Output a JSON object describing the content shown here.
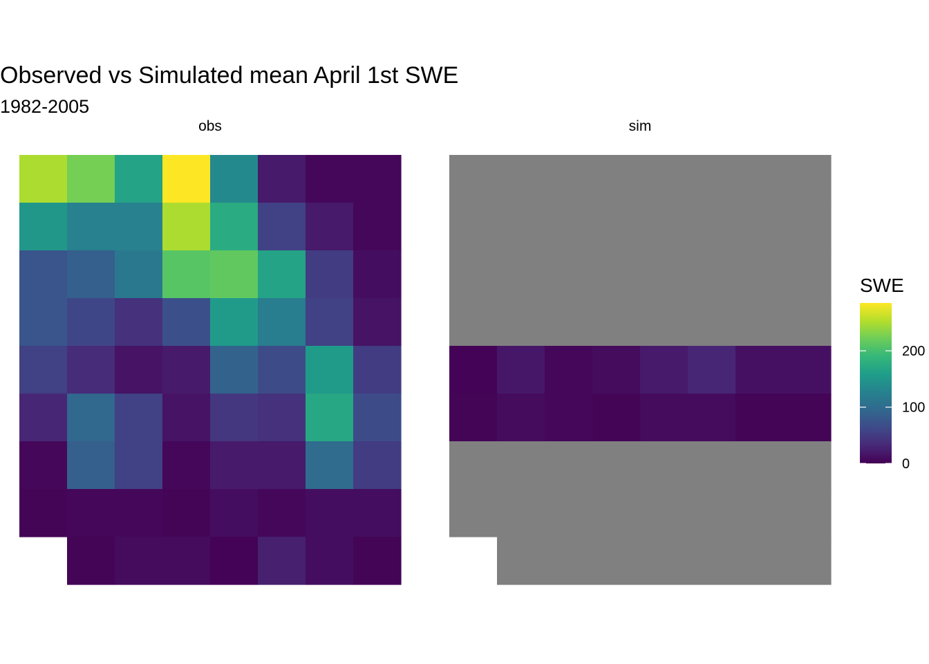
{
  "chart_data": {
    "type": "heatmap",
    "title": "Observed vs Simulated mean April 1st SWE",
    "subtitle": "1982-2005",
    "panels": [
      {
        "name": "obs",
        "rows": [
          [
            250,
            225,
            165,
            285,
            135,
            20,
            5,
            5
          ],
          [
            150,
            125,
            125,
            250,
            175,
            55,
            20,
            5
          ],
          [
            75,
            85,
            115,
            210,
            215,
            165,
            50,
            10
          ],
          [
            75,
            60,
            40,
            70,
            155,
            120,
            55,
            15
          ],
          [
            55,
            35,
            15,
            20,
            90,
            65,
            155,
            50
          ],
          [
            30,
            95,
            55,
            15,
            45,
            40,
            170,
            65
          ],
          [
            5,
            85,
            55,
            5,
            20,
            20,
            100,
            50
          ],
          [
            3,
            5,
            5,
            3,
            10,
            5,
            10,
            10
          ],
          [
            null,
            3,
            8,
            8,
            2,
            25,
            10,
            3
          ]
        ]
      },
      {
        "name": "sim",
        "missing_color": "#808080",
        "rows": [
          [
            null,
            null,
            null,
            null,
            null,
            null,
            null,
            null
          ],
          [
            null,
            null,
            null,
            null,
            null,
            null,
            null,
            null
          ],
          [
            null,
            null,
            null,
            null,
            null,
            null,
            null,
            null
          ],
          [
            null,
            null,
            null,
            null,
            null,
            null,
            null,
            null
          ],
          [
            2,
            18,
            5,
            8,
            20,
            30,
            12,
            12
          ],
          [
            3,
            8,
            5,
            3,
            8,
            8,
            3,
            3
          ],
          [
            null,
            null,
            null,
            null,
            null,
            null,
            null,
            null
          ],
          [
            null,
            null,
            null,
            null,
            null,
            null,
            null,
            null
          ],
          [
            "blank",
            null,
            null,
            null,
            null,
            null,
            null,
            null
          ]
        ]
      }
    ],
    "legend": {
      "title": "SWE",
      "ticks": [
        0,
        100,
        200
      ],
      "range": [
        0,
        285
      ],
      "placement": "right"
    },
    "colors": [
      "#440154",
      "#482878",
      "#3E4A89",
      "#31688E",
      "#26828E",
      "#1F9E89",
      "#35B779",
      "#6DCD59",
      "#B4DE2C",
      "#FDE725"
    ]
  }
}
